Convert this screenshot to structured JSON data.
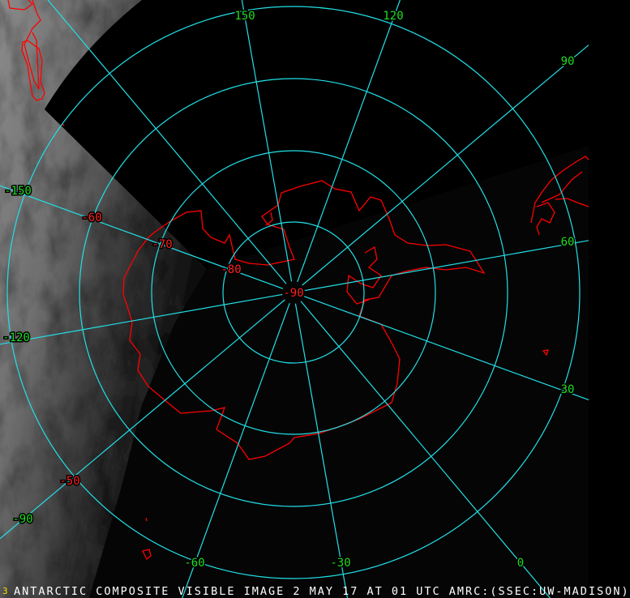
{
  "caption": "ANTARCTIC COMPOSITE VISIBLE IMAGE 2 MAY 17 AT 01 UTC AMRC:(SSEC:UW-MADISON)",
  "frame_number": "3",
  "projection": "south-polar-stereographic",
  "colors": {
    "grid": "#22e0e8",
    "longitude_label": "#22dd22",
    "latitude_label": "#ff2020",
    "coastline": "#ff0000",
    "caption": "#ffffff",
    "frame_number": "#ffd800"
  },
  "longitude_labels": [
    "150",
    "120",
    "90",
    "60",
    "30",
    "0",
    "-30",
    "-60",
    "-90",
    "-120",
    "-150"
  ],
  "latitude_labels": [
    "-90",
    "-80",
    "-70",
    "-60",
    "-50"
  ],
  "grid": {
    "meridian_spacing_deg": 30,
    "parallels": [
      -80,
      -70,
      -60,
      -50
    ]
  }
}
